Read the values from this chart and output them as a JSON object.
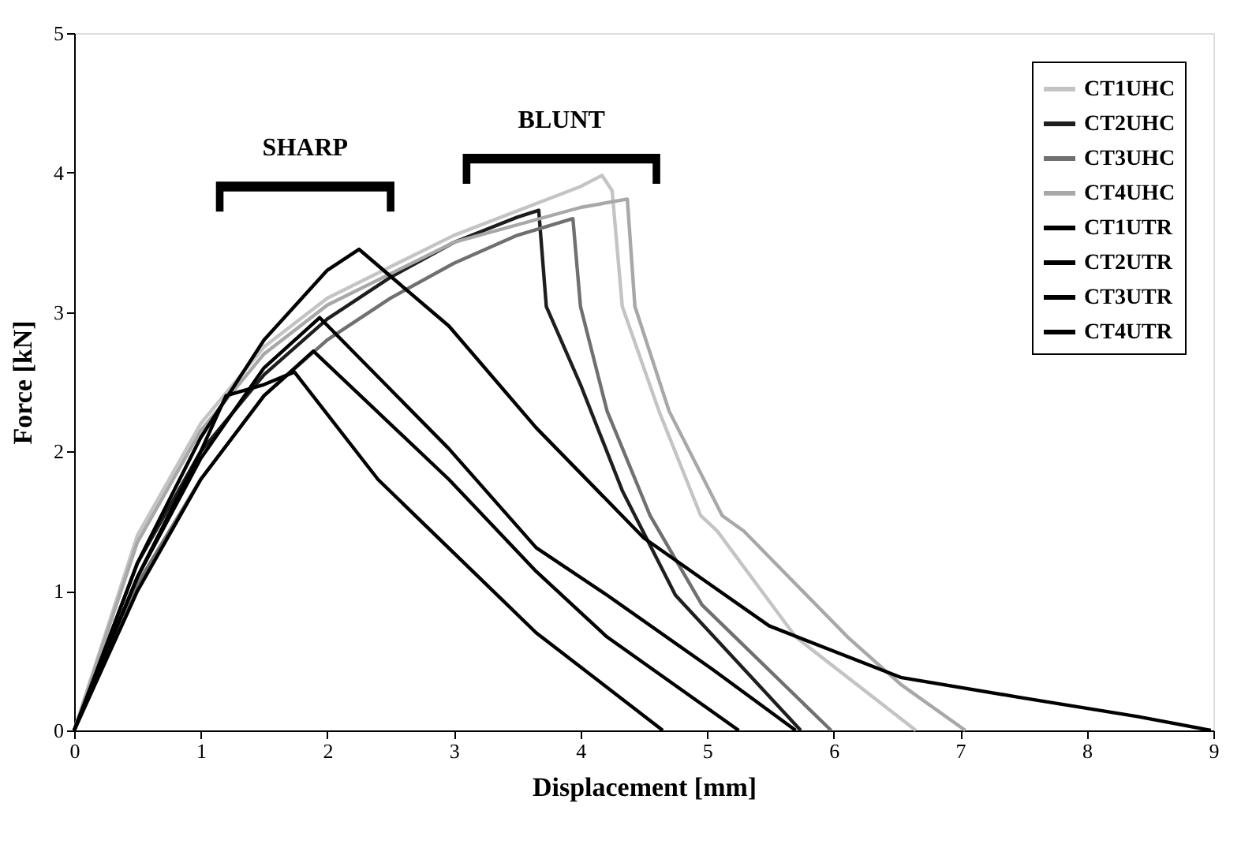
{
  "chart_data": {
    "type": "line",
    "xlabel": "Displacement [mm]",
    "ylabel": "Force [kN]",
    "xlim": [
      0,
      9
    ],
    "xticks": [
      0,
      1,
      2,
      3,
      4,
      5,
      6,
      7,
      8,
      9
    ],
    "ylim": [
      0,
      5
    ],
    "yticks": [
      0,
      1,
      2,
      3,
      4,
      5
    ],
    "grid": false,
    "legend": "top right",
    "marker": "none",
    "line_style": "solid",
    "annotations": [
      "SHARP",
      "BLUNT"
    ],
    "series": [
      {
        "name": "CT1UHC",
        "color": "#c4c4c4",
        "x": [
          0,
          0.5,
          1,
          1.5,
          2,
          3,
          4,
          4.17,
          4.25,
          4.33,
          4.62,
          4.95,
          5.08,
          5.7,
          6.65
        ],
        "values": [
          0,
          1.4,
          2.2,
          2.75,
          3.1,
          3.55,
          3.9,
          3.98,
          3.87,
          3.04,
          2.29,
          1.54,
          1.43,
          0.67,
          0
        ]
      },
      {
        "name": "CT2UHC",
        "color": "#1e1e1e",
        "x": [
          0,
          0.5,
          1,
          1.5,
          2,
          2.5,
          3,
          3.5,
          3.67,
          3.73,
          4.0,
          4.33,
          4.75,
          5.74
        ],
        "values": [
          0,
          1.2,
          2.0,
          2.55,
          2.95,
          3.25,
          3.5,
          3.68,
          3.73,
          3.04,
          2.48,
          1.72,
          0.97,
          0
        ]
      },
      {
        "name": "CT3UHC",
        "color": "#707070",
        "x": [
          0,
          0.5,
          1,
          1.5,
          2,
          2.5,
          3,
          3.5,
          3.94,
          4.0,
          4.21,
          4.55,
          4.96,
          5.98
        ],
        "values": [
          0,
          1.05,
          1.8,
          2.4,
          2.8,
          3.1,
          3.35,
          3.55,
          3.67,
          3.04,
          2.29,
          1.54,
          0.9,
          0
        ]
      },
      {
        "name": "CT4UHC",
        "color": "#a8a8a8",
        "x": [
          0,
          0.5,
          1,
          1.5,
          2,
          3,
          4,
          4.37,
          4.43,
          4.7,
          5.12,
          5.29,
          6.11,
          6.53,
          7.04
        ],
        "values": [
          0,
          1.35,
          2.15,
          2.7,
          3.05,
          3.5,
          3.75,
          3.81,
          3.04,
          2.29,
          1.54,
          1.43,
          0.67,
          0.33,
          0
        ]
      },
      {
        "name": "CT1UTR",
        "color": "#000000",
        "x": [
          0,
          0.5,
          1,
          1.5,
          2,
          2.25,
          2.96,
          3.65,
          4.5,
          5.49,
          6.53,
          7.45,
          8.4,
          8.98
        ],
        "values": [
          0,
          1.2,
          2.1,
          2.8,
          3.3,
          3.45,
          2.9,
          2.17,
          1.38,
          0.75,
          0.38,
          0.24,
          0.1,
          0
        ]
      },
      {
        "name": "CT2UTR",
        "color": "#000000",
        "x": [
          0,
          0.5,
          1,
          1.5,
          1.94,
          2.96,
          3.65,
          4.21,
          5.04,
          5.7
        ],
        "values": [
          0,
          1.1,
          1.95,
          2.6,
          2.96,
          2.02,
          1.31,
          0.97,
          0.44,
          0
        ]
      },
      {
        "name": "CT3UTR",
        "color": "#000000",
        "x": [
          0,
          0.5,
          1,
          1.5,
          1.89,
          2.96,
          3.65,
          4.21,
          5.25
        ],
        "values": [
          0,
          1.0,
          1.8,
          2.4,
          2.72,
          1.8,
          1.14,
          0.67,
          0
        ]
      },
      {
        "name": "CT4UTR",
        "color": "#000000",
        "x": [
          0,
          0.5,
          1,
          1.2,
          1.5,
          1.74,
          2.4,
          3.65,
          4.65
        ],
        "values": [
          0,
          1.1,
          2.0,
          2.4,
          2.48,
          2.57,
          1.8,
          0.7,
          0
        ]
      }
    ]
  }
}
